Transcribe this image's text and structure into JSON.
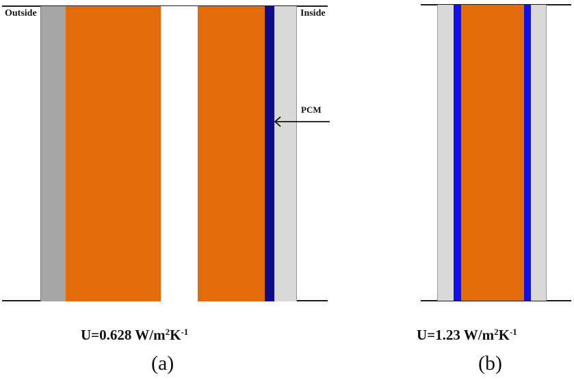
{
  "wall_a": {
    "outside_label": "Outside",
    "inside_label": "Inside",
    "pcm_label": "PCM",
    "u_prefix": "U=0.628 W/m",
    "u_exp1": "2",
    "u_mid": "K",
    "u_exp2": "-1",
    "caption": "(a)"
  },
  "wall_b": {
    "u_prefix": "U=1.23 W/m",
    "u_exp1": "2",
    "u_mid": "K",
    "u_exp2": "-1",
    "caption": "(b)"
  },
  "colors": {
    "brick": "#e36c0a",
    "pcm_a": "#0d0d8a",
    "pcm_b": "#1010ee",
    "plaster_outside": "#a6a6a6",
    "plaster_inside": "#d9d9d9",
    "air_gap": "#ffffff"
  }
}
